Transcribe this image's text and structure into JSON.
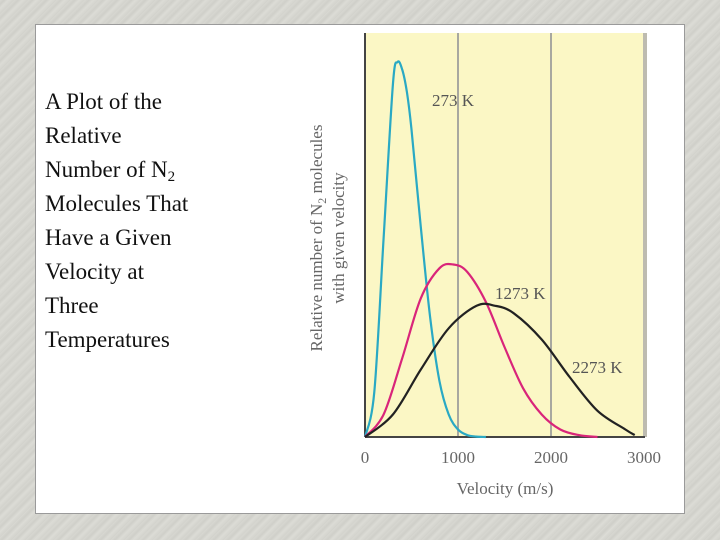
{
  "caption": {
    "lines": [
      "A Plot of the",
      "Relative",
      "Number of N",
      "Molecules That",
      "Have a Given",
      "Velocity at",
      "Three",
      "Temperatures"
    ],
    "subscript": "2"
  },
  "chart_data": {
    "type": "line",
    "xlabel": "Velocity (m/s)",
    "ylabel_line1_pre": "Relative number of N",
    "ylabel_sub": "2",
    "ylabel_line1_post": " molecules",
    "ylabel_line2": "with given velocity",
    "xlim": [
      0,
      3000
    ],
    "xticks": [
      0,
      1000,
      2000,
      3000
    ],
    "ylim": [
      0,
      1.0
    ],
    "grid": true,
    "series": [
      {
        "name": "273 K",
        "color": "#2aa9c4",
        "x": [
          0,
          100,
          200,
          300,
          350,
          400,
          450,
          500,
          600,
          700,
          800,
          900,
          1000,
          1100,
          1200,
          1300
        ],
        "y": [
          0,
          0.12,
          0.53,
          0.94,
          1.0,
          0.98,
          0.92,
          0.82,
          0.56,
          0.32,
          0.15,
          0.06,
          0.02,
          0.005,
          0.001,
          0
        ]
      },
      {
        "name": "1273 K",
        "color": "#d9257a",
        "x": [
          0,
          200,
          400,
          600,
          800,
          950,
          1100,
          1300,
          1500,
          1700,
          1900,
          2100,
          2300,
          2500
        ],
        "y": [
          0,
          0.06,
          0.21,
          0.37,
          0.45,
          0.46,
          0.44,
          0.36,
          0.24,
          0.13,
          0.06,
          0.02,
          0.005,
          0
        ]
      },
      {
        "name": "2273 K",
        "color": "#222222",
        "x": [
          0,
          300,
          600,
          900,
          1200,
          1400,
          1600,
          1900,
          2200,
          2500,
          2800,
          2900
        ],
        "y": [
          0,
          0.06,
          0.18,
          0.29,
          0.35,
          0.35,
          0.33,
          0.26,
          0.16,
          0.07,
          0.02,
          0.005
        ]
      }
    ]
  }
}
